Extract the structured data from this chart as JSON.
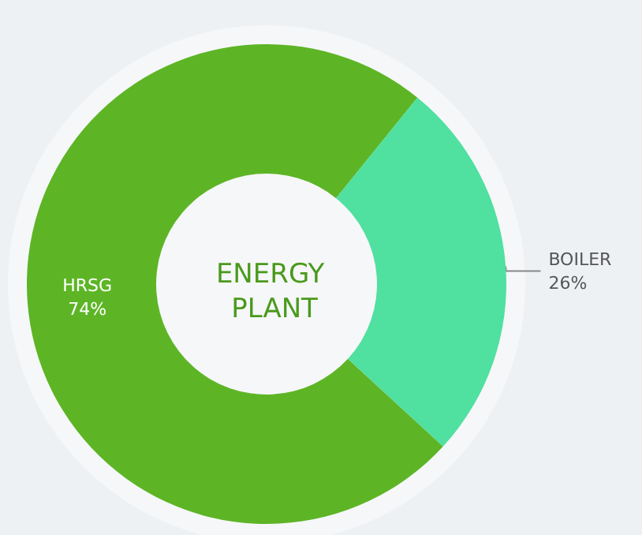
{
  "chart_data": {
    "type": "donut",
    "title": "ENERGY PLANT",
    "categories": [
      "HRSG",
      "BOILER"
    ],
    "values": [
      74,
      26
    ],
    "value_labels": [
      "74%",
      "26%"
    ],
    "colors": [
      "#5db526",
      "#50e0a0"
    ],
    "legend": false
  }
}
